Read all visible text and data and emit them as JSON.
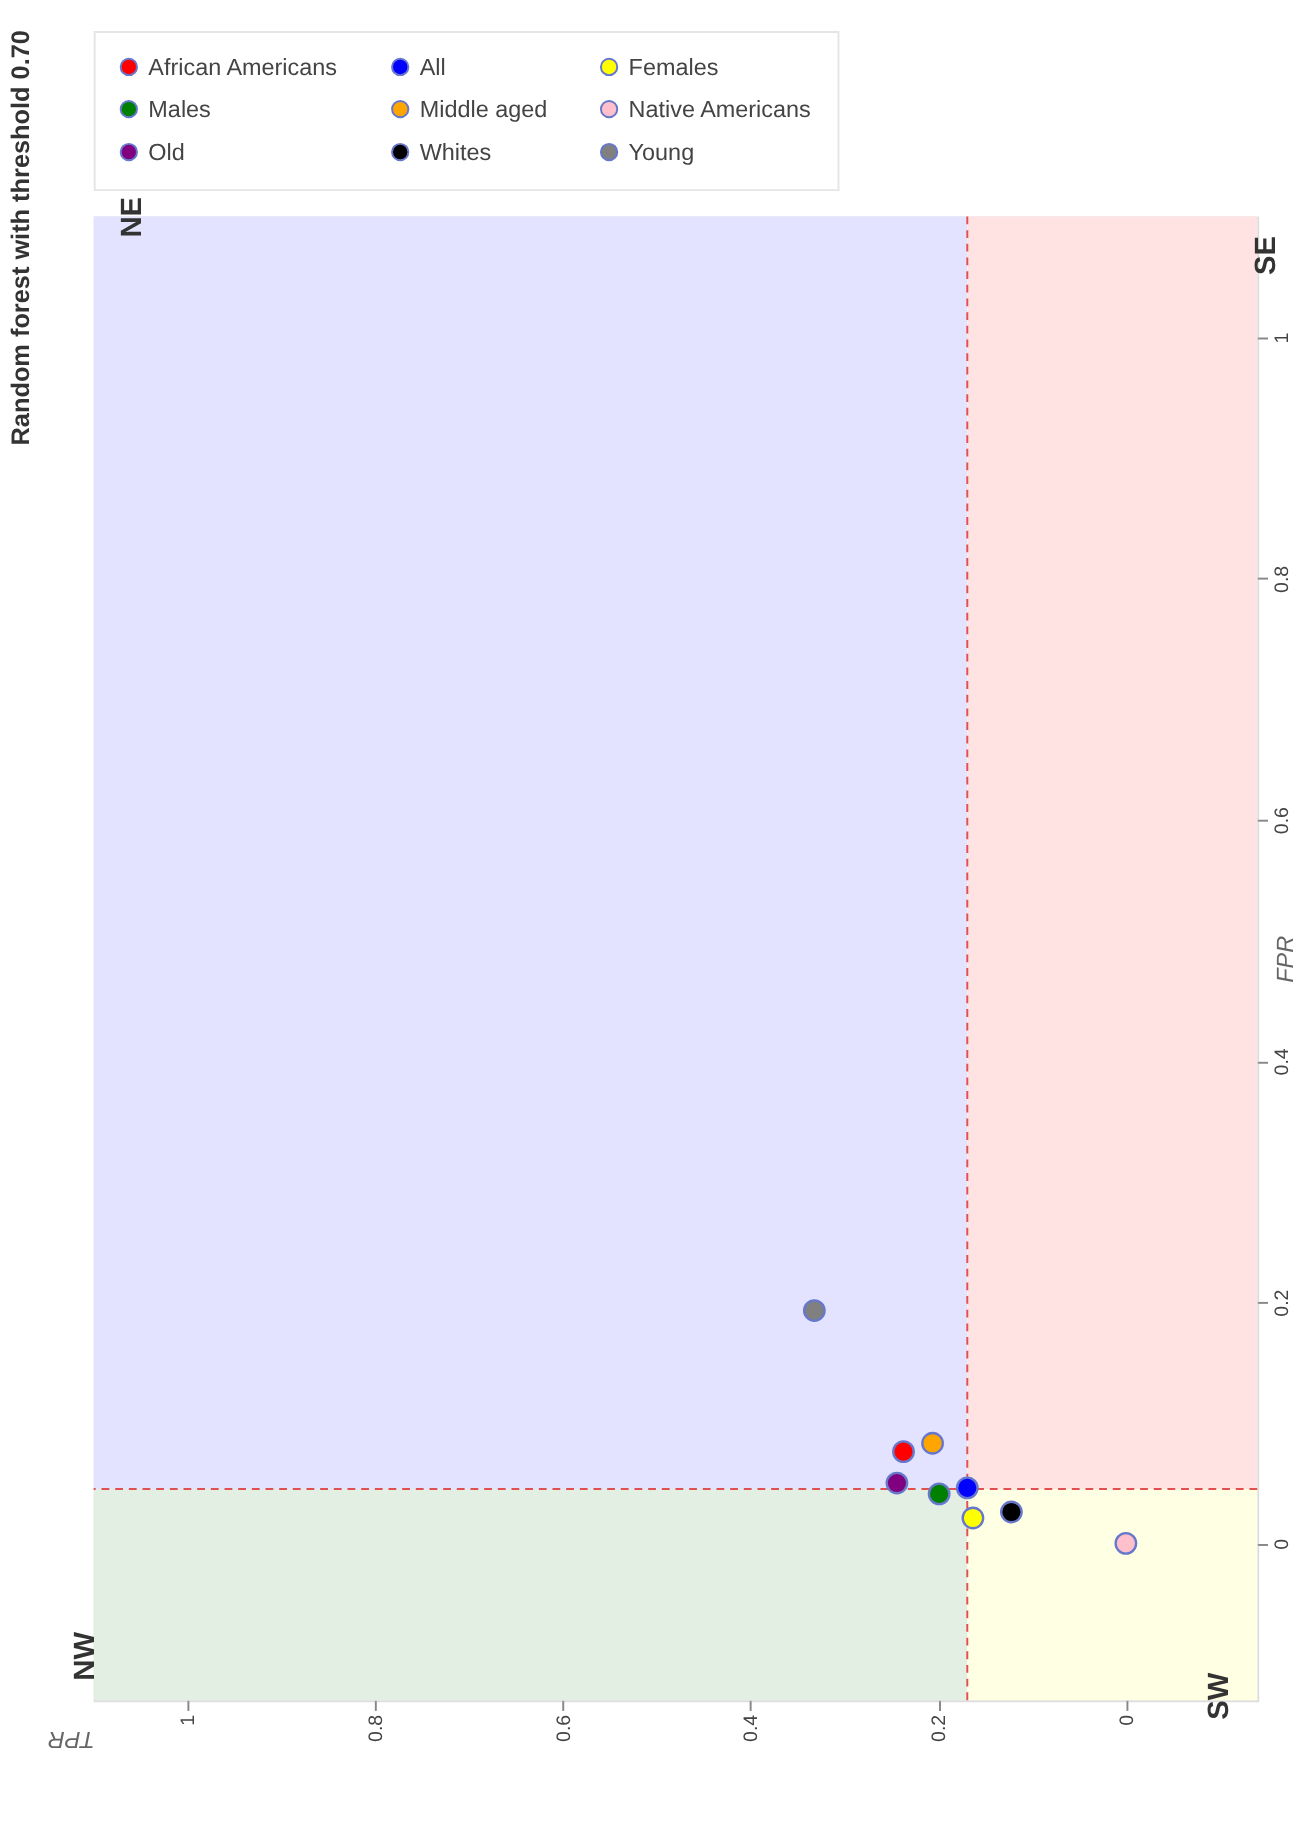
{
  "chart_data": {
    "type": "scatter",
    "title": "Random forest with threshold 0.70",
    "xlabel": "TPR",
    "ylabel": "FPR",
    "xlim": [
      1.1,
      -0.14
    ],
    "ylim": [
      -0.13,
      1.1
    ],
    "xticks": [
      0,
      0.2,
      0.4,
      0.6,
      0.8,
      1
    ],
    "yticks": [
      0,
      0.2,
      0.4,
      0.6,
      0.8,
      1
    ],
    "grid": true,
    "legend": "top left",
    "marker": "circle",
    "series": [
      {
        "name": "African Americans",
        "color": "#ff0000",
        "x": [
          0.237
        ],
        "values": [
          0.076
        ]
      },
      {
        "name": "All",
        "color": "#0000ff",
        "x": [
          0.169
        ],
        "values": [
          0.046
        ]
      },
      {
        "name": "Females",
        "color": "#ffff00",
        "x": [
          0.163
        ],
        "values": [
          0.021
        ]
      },
      {
        "name": "Males",
        "color": "#008000",
        "x": [
          0.199
        ],
        "values": [
          0.041
        ]
      },
      {
        "name": "Middle aged",
        "color": "#ffa500",
        "x": [
          0.206
        ],
        "values": [
          0.083
        ]
      },
      {
        "name": "Native Americans",
        "color": "#ffc0cb",
        "x": [
          0
        ],
        "values": [
          0
        ]
      },
      {
        "name": "Old",
        "color": "#800080",
        "x": [
          0.244
        ],
        "values": [
          0.05
        ]
      },
      {
        "name": "Whites",
        "color": "#000000",
        "x": [
          0.122
        ],
        "values": [
          0.026
        ]
      },
      {
        "name": "Young",
        "color": "#808080",
        "x": [
          0.332
        ],
        "values": [
          0.193
        ]
      }
    ],
    "ref_lines": [
      {
        "axis": "x",
        "value": 0.169,
        "color": "#e05050",
        "line_style": "dashed"
      },
      {
        "axis": "y",
        "value": 0.045,
        "color": "#e05050",
        "line_style": "dashed"
      }
    ],
    "bands": [
      {
        "axis": "y",
        "from": -0.13,
        "to": 0.045,
        "label": "NW",
        "color": "#e4efe3"
      },
      {
        "axis": "y",
        "from": -0.13,
        "to": 0.045,
        "label": "SW",
        "color": "#ffffe3"
      },
      {
        "axis": "y",
        "from": 0.045,
        "to": 1.1,
        "label": "NE",
        "color": "#e3e3ff"
      },
      {
        "axis": "y",
        "from": 0.045,
        "to": 1.1,
        "label": "SE",
        "color": "#ffe3e3"
      }
    ]
  }
}
